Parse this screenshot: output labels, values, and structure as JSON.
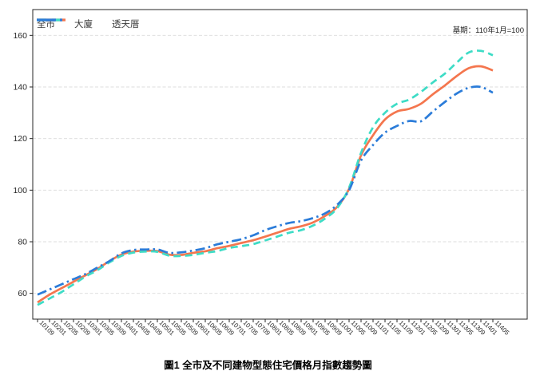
{
  "annotation": {
    "base_period": "基期：110年1月=100"
  },
  "caption": "圖1 全市及不同建物型態住宅價格月指數趨勢圖",
  "chart_data": {
    "type": "line",
    "title": "圖1 全市及不同建物型態住宅價格月指數趨勢圖",
    "xlabel": "",
    "ylabel": "",
    "ylim": [
      50,
      170
    ],
    "yticks": [
      60,
      80,
      100,
      120,
      140,
      160
    ],
    "grid": true,
    "legend_position": "top-left",
    "note": "基期：110年1月=100",
    "x_tick_labels": [
      "10109",
      "10201",
      "10205",
      "10209",
      "10301",
      "10305",
      "10309",
      "10401",
      "10405",
      "10409",
      "10501",
      "10505",
      "10509",
      "10601",
      "10605",
      "10609",
      "10701",
      "10705",
      "10709",
      "10801",
      "10805",
      "10809",
      "10901",
      "10905",
      "10909",
      "11001",
      "11005",
      "11009",
      "11101",
      "11105",
      "11109",
      "11201",
      "11205",
      "11209",
      "11301",
      "11305",
      "11309",
      "11401",
      "11405"
    ],
    "series": [
      {
        "name": "全市",
        "color": "#F4764E",
        "style": "solid",
        "values": [
          56.5,
          59.5,
          62,
          64.5,
          67,
          69.5,
          72.5,
          75,
          76.2,
          76.5,
          76.4,
          75,
          74.9,
          75.7,
          76.3,
          77.5,
          78.4,
          79.5,
          80.6,
          82,
          83.5,
          85,
          86,
          87.5,
          90,
          93.5,
          100.5,
          113.5,
          121.3,
          127.4,
          130.5,
          131.5,
          133.5,
          137.2,
          140.6,
          144.3,
          147.3,
          148,
          146.4
        ]
      },
      {
        "name": "大廈",
        "color": "#3EDCC6",
        "style": "dashed",
        "values": [
          55.5,
          58,
          60.5,
          63.5,
          66.5,
          69,
          72,
          74.5,
          75.8,
          76.2,
          76.1,
          74.6,
          74.5,
          74.9,
          75.7,
          76.4,
          77.6,
          78.3,
          79.1,
          80.5,
          82,
          83.5,
          84.5,
          86.3,
          89,
          93,
          101,
          114.5,
          124.4,
          130,
          133.5,
          135.1,
          138.1,
          141.8,
          145.2,
          149.5,
          153.4,
          154,
          152.3
        ]
      },
      {
        "name": "透天厝",
        "color": "#2B7CD9",
        "style": "dashdot",
        "values": [
          59.5,
          61.5,
          63.5,
          65.5,
          67.5,
          70,
          72.5,
          75.5,
          76.8,
          77,
          77,
          75.7,
          75.9,
          76.6,
          77.5,
          79,
          80,
          81,
          82.5,
          84.5,
          86,
          87.3,
          88,
          89.2,
          91,
          94.3,
          100,
          111.5,
          117.5,
          122.3,
          124.9,
          126.8,
          126.7,
          130.5,
          134.2,
          137.5,
          139.7,
          140,
          137.8
        ]
      }
    ]
  }
}
